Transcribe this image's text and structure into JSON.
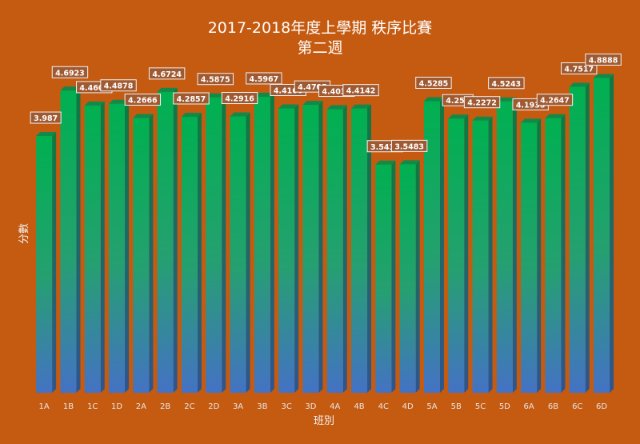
{
  "chart_data": {
    "type": "bar",
    "title": "2017-2018年度上學期 秩序比賽",
    "subtitle": "第二週",
    "xlabel": "班別",
    "ylabel": "分數",
    "categories": [
      "1A",
      "1B",
      "1C",
      "1D",
      "2A",
      "2B",
      "2C",
      "2D",
      "3A",
      "3B",
      "3C",
      "3D",
      "4A",
      "4B",
      "4C",
      "4D",
      "5A",
      "5B",
      "5C",
      "5D",
      "6A",
      "6B",
      "6C",
      "6D"
    ],
    "values": [
      3.987,
      4.6923,
      4.4605,
      4.4878,
      4.2666,
      4.6724,
      4.2857,
      4.5875,
      4.2916,
      4.5967,
      4.4166,
      4.4705,
      4.4032,
      4.4142,
      3.5434,
      3.5483,
      4.5285,
      4.258,
      4.2272,
      4.5243,
      4.1935,
      4.2647,
      4.7517,
      4.8888
    ],
    "data_labels": [
      "3.987",
      "4.6923",
      "4.4605",
      "4.4878",
      "4.2666",
      "4.6724",
      "4.2857",
      "4.5875",
      "4.2916",
      "4.5967",
      "4.4166",
      "4.4705",
      "4.4032",
      "4.4142",
      "3.5434",
      "3.5483",
      "4.5285",
      "4.258",
      "4.2272",
      "4.5243",
      "4.1935",
      "4.2647",
      "4.7517",
      "4.8888"
    ],
    "ylim": [
      0,
      4.9
    ],
    "grid": false,
    "legend": "none",
    "colors": {
      "background": "#c55a11",
      "bar_top": "#00b050",
      "bar_bottom": "#4472c4",
      "bar_side": "#1e7a4a",
      "bar_cap": "#0f8a48"
    }
  }
}
